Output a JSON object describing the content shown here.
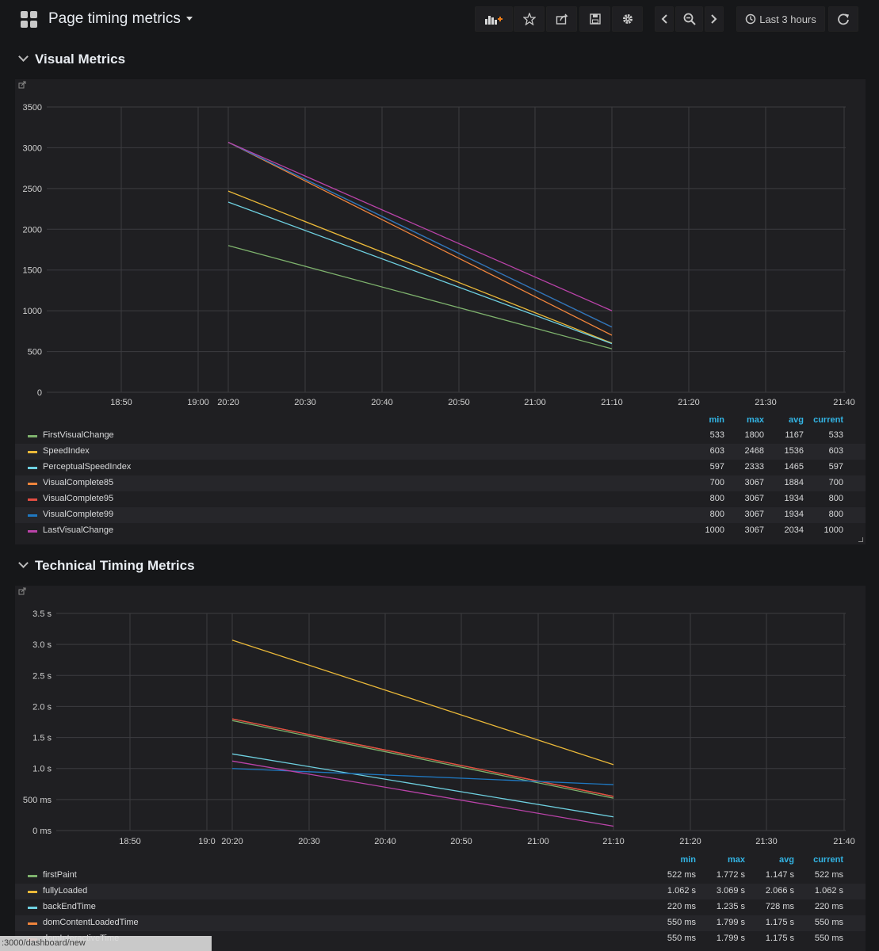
{
  "dashboard": {
    "title": "Page timing metrics",
    "time_range": "Last 3 hours"
  },
  "toolbar": {
    "icons": [
      "add-panel-icon",
      "star-icon",
      "share-icon",
      "save-icon",
      "settings-icon",
      "chevron-left-icon",
      "zoom-out-icon",
      "chevron-right-icon",
      "clock-icon",
      "refresh-icon"
    ]
  },
  "rows": [
    {
      "title": "Visual Metrics"
    },
    {
      "title": "Technical Timing Metrics"
    }
  ],
  "legend_columns": [
    "min",
    "max",
    "avg",
    "current"
  ],
  "visual_legend": [
    {
      "name": "FirstVisualChange",
      "color": "#7eb26d",
      "min": "533",
      "max": "1800",
      "avg": "1167",
      "current": "533"
    },
    {
      "name": "SpeedIndex",
      "color": "#eab839",
      "min": "603",
      "max": "2468",
      "avg": "1536",
      "current": "603"
    },
    {
      "name": "PerceptualSpeedIndex",
      "color": "#6ed0e0",
      "min": "597",
      "max": "2333",
      "avg": "1465",
      "current": "597"
    },
    {
      "name": "VisualComplete85",
      "color": "#ef843c",
      "min": "700",
      "max": "3067",
      "avg": "1884",
      "current": "700"
    },
    {
      "name": "VisualComplete95",
      "color": "#e24d42",
      "min": "800",
      "max": "3067",
      "avg": "1934",
      "current": "800"
    },
    {
      "name": "VisualComplete99",
      "color": "#1f78c1",
      "min": "800",
      "max": "3067",
      "avg": "1934",
      "current": "800"
    },
    {
      "name": "LastVisualChange",
      "color": "#ba43a9",
      "min": "1000",
      "max": "3067",
      "avg": "2034",
      "current": "1000"
    }
  ],
  "technical_legend": [
    {
      "name": "firstPaint",
      "color": "#7eb26d",
      "min": "522 ms",
      "max": "1.772 s",
      "avg": "1.147 s",
      "current": "522 ms"
    },
    {
      "name": "fullyLoaded",
      "color": "#eab839",
      "min": "1.062 s",
      "max": "3.069 s",
      "avg": "2.066 s",
      "current": "1.062 s"
    },
    {
      "name": "backEndTime",
      "color": "#6ed0e0",
      "min": "220 ms",
      "max": "1.235 s",
      "avg": "728 ms",
      "current": "220 ms"
    },
    {
      "name": "domContentLoadedTime",
      "color": "#ef843c",
      "min": "550 ms",
      "max": "1.799 s",
      "avg": "1.175 s",
      "current": "550 ms"
    },
    {
      "name": "domInteractiveTime",
      "color": "#e24d42",
      "min": "550 ms",
      "max": "1.799 s",
      "avg": "1.175 s",
      "current": "550 ms"
    }
  ],
  "chart_data": [
    {
      "type": "line",
      "title": "",
      "x_ticks": [
        "18:50",
        "19:00",
        "20:20",
        "20:30",
        "20:40",
        "20:50",
        "21:00",
        "21:10",
        "21:20",
        "21:30",
        "21:40"
      ],
      "y_ticks": [
        "0",
        "500",
        "1000",
        "1500",
        "2000",
        "2500",
        "3000",
        "3500"
      ],
      "ylim": [
        0,
        3500
      ],
      "x_start": "20:20",
      "x_end": "21:10",
      "grid": true,
      "series": [
        {
          "name": "FirstVisualChange",
          "color": "#7eb26d",
          "y": [
            1800,
            533
          ]
        },
        {
          "name": "SpeedIndex",
          "color": "#eab839",
          "y": [
            2468,
            603
          ]
        },
        {
          "name": "PerceptualSpeedIndex",
          "color": "#6ed0e0",
          "y": [
            2333,
            597
          ]
        },
        {
          "name": "VisualComplete85",
          "color": "#ef843c",
          "y": [
            3067,
            700
          ]
        },
        {
          "name": "VisualComplete95",
          "color": "#e24d42",
          "y": [
            3067,
            800
          ]
        },
        {
          "name": "VisualComplete99",
          "color": "#1f78c1",
          "y": [
            3067,
            800
          ]
        },
        {
          "name": "LastVisualChange",
          "color": "#ba43a9",
          "y": [
            3067,
            1000
          ]
        }
      ]
    },
    {
      "type": "line",
      "title": "",
      "x_ticks": [
        "18:50",
        "19:0",
        "20:20",
        "20:30",
        "20:40",
        "20:50",
        "21:00",
        "21:10",
        "21:20",
        "21:30",
        "21:40"
      ],
      "y_ticks": [
        "0 ms",
        "500 ms",
        "1.0 s",
        "1.5 s",
        "2.0 s",
        "2.5 s",
        "3.0 s",
        "3.5 s"
      ],
      "ylim": [
        0,
        3.5
      ],
      "x_start": "20:20",
      "x_end": "21:10",
      "grid": true,
      "series": [
        {
          "name": "firstPaint",
          "color": "#7eb26d",
          "y": [
            1.772,
            0.522
          ]
        },
        {
          "name": "fullyLoaded",
          "color": "#eab839",
          "y": [
            3.069,
            1.062
          ]
        },
        {
          "name": "backEndTime",
          "color": "#6ed0e0",
          "y": [
            1.235,
            0.22
          ]
        },
        {
          "name": "domContentLoadedTime",
          "color": "#ef843c",
          "y": [
            1.799,
            0.55
          ]
        },
        {
          "name": "domInteractiveTime",
          "color": "#e24d42",
          "y": [
            1.799,
            0.55
          ]
        },
        {
          "name": "",
          "color": "#1f78c1",
          "y": [
            1.0,
            0.74
          ]
        },
        {
          "name": "",
          "color": "#ba43a9",
          "y": [
            1.12,
            0.07
          ]
        }
      ]
    }
  ],
  "statusbar": {
    "url": ":3000/dashboard/new"
  }
}
